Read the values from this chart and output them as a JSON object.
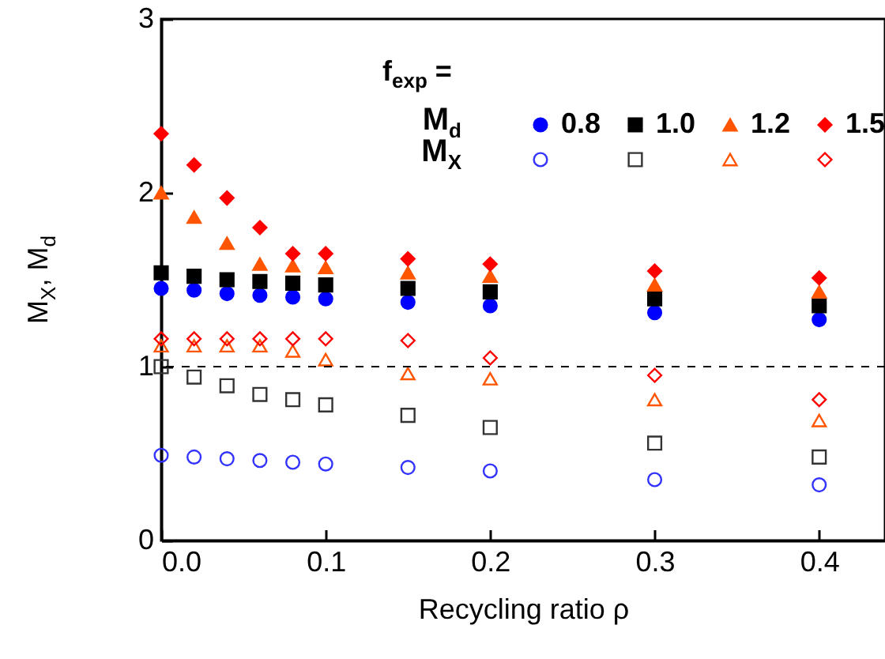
{
  "chart_data": {
    "type": "scatter",
    "xlabel": "Recycling ratio ρ",
    "ylabel": "M$_{X}$, M$_{d}$",
    "legend_title": "f$_{exp}$ =",
    "legend": "top right",
    "grid": false,
    "annotations": [
      "M$_{d}$",
      "M$_{X}$"
    ],
    "x": [
      0,
      0.02,
      0.04,
      0.06,
      0.08,
      0.1,
      0.15,
      0.2,
      0.3,
      0.4
    ],
    "xlim": [
      0,
      0.44
    ],
    "xticks": [
      {
        "value": 0,
        "label": "0.0"
      },
      0.1,
      0.2,
      0.3,
      0.4
    ],
    "ylim": [
      0,
      3
    ],
    "yticks": [
      0,
      1,
      2,
      3
    ],
    "ref_lines": [
      {
        "axis": "y",
        "value": 1,
        "color": "#000000",
        "line_style": "dashed"
      }
    ],
    "series": [
      {
        "name": "0.8",
        "color": "#0000ff",
        "marker": "circle",
        "values": [
          1.45,
          1.44,
          1.42,
          1.41,
          1.4,
          1.39,
          1.37,
          1.35,
          1.31,
          1.27
        ]
      },
      {
        "name": "1.0",
        "color": "#000000",
        "marker": "square",
        "values": [
          1.54,
          1.52,
          1.5,
          1.49,
          1.48,
          1.47,
          1.45,
          1.43,
          1.39,
          1.35
        ]
      },
      {
        "name": "1.2",
        "color": "#ff5500",
        "marker": "triangle",
        "values": [
          2.0,
          1.86,
          1.71,
          1.59,
          1.58,
          1.57,
          1.54,
          1.52,
          1.47,
          1.43
        ]
      },
      {
        "name": "1.5",
        "color": "#ff0000",
        "marker": "diamond",
        "values": [
          2.34,
          2.16,
          1.97,
          1.8,
          1.65,
          1.65,
          1.62,
          1.59,
          1.55,
          1.51
        ]
      },
      {
        "color": "#3333ff",
        "marker": "circle",
        "values": [
          0.49,
          0.48,
          0.47,
          0.46,
          0.45,
          0.44,
          0.42,
          0.4,
          0.35,
          0.32
        ]
      },
      {
        "color": "#333333",
        "marker": "square",
        "values": [
          1.0,
          0.94,
          0.89,
          0.84,
          0.81,
          0.78,
          0.72,
          0.65,
          0.56,
          0.48
        ]
      },
      {
        "color": "#ff5500",
        "marker": "triangle",
        "values": [
          1.12,
          1.12,
          1.12,
          1.12,
          1.09,
          1.04,
          0.96,
          0.93,
          0.81,
          0.69
        ]
      },
      {
        "color": "#ff0000",
        "marker": "diamond",
        "values": [
          1.16,
          1.16,
          1.16,
          1.16,
          1.16,
          1.16,
          1.15,
          1.05,
          0.95,
          0.81
        ]
      }
    ]
  }
}
